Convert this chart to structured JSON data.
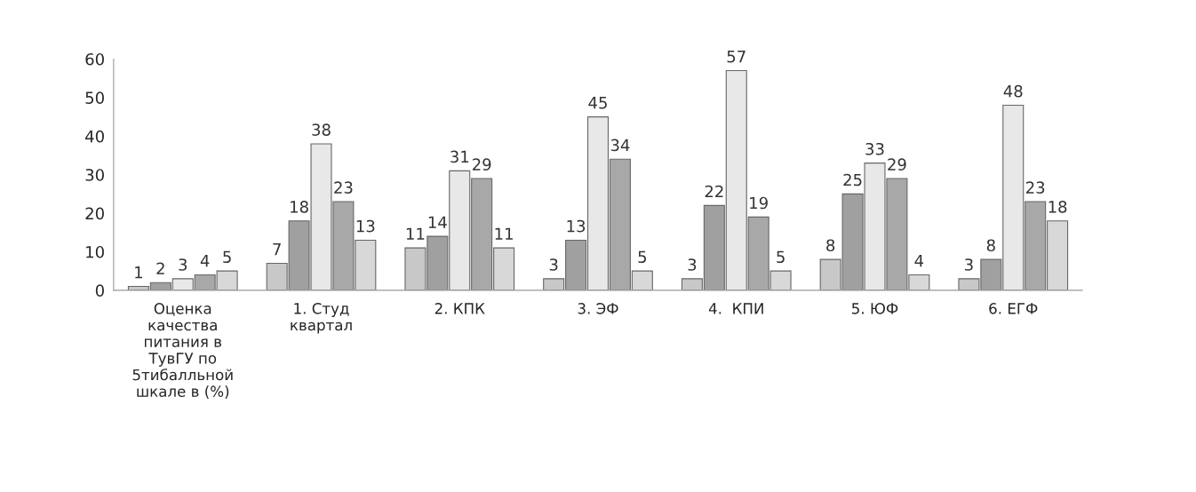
{
  "chart_data": {
    "type": "bar",
    "categories": [
      "Оценка\nкачества\nпитания в\nТувГУ по\n5тибалльной\nшкале в (%)",
      "1. Студ\nквартал",
      "2. КПК",
      "3. ЭФ",
      "4.  КПИ",
      "5. ЮФ",
      "6. ЕГФ"
    ],
    "series": [
      {
        "color": "#c8c8c8",
        "values": [
          1,
          7,
          11,
          3,
          3,
          8,
          3
        ]
      },
      {
        "color": "#a0a0a0",
        "values": [
          2,
          18,
          14,
          13,
          22,
          25,
          8
        ]
      },
      {
        "color": "#e8e8e8",
        "values": [
          3,
          38,
          31,
          45,
          57,
          33,
          48
        ]
      },
      {
        "color": "#a8a8a8",
        "values": [
          4,
          23,
          29,
          34,
          19,
          29,
          23
        ]
      },
      {
        "color": "#d8d8d8",
        "values": [
          5,
          13,
          11,
          5,
          5,
          4,
          18
        ]
      }
    ],
    "ylim": [
      0,
      60
    ],
    "yticks": [
      0,
      10,
      20,
      30,
      40,
      50,
      60
    ],
    "grid": false,
    "legend": false,
    "data_labels": true
  }
}
